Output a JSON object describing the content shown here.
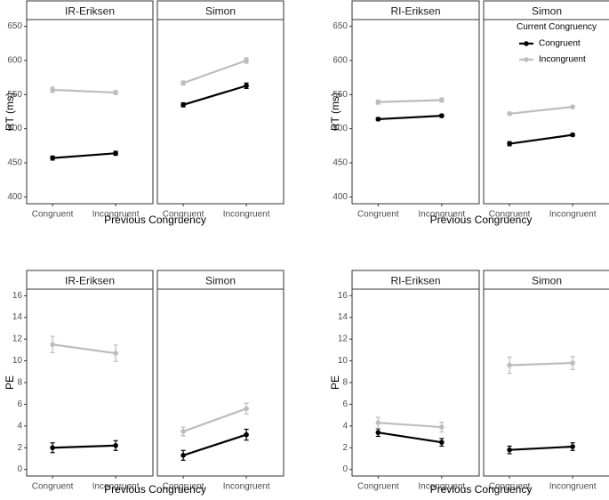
{
  "colors": {
    "Congruent": "#000000",
    "Incongruent": "#bdbdbd"
  },
  "legend": {
    "title": "Current Congruency",
    "items": [
      {
        "key": "Congruent",
        "label": "Congruent"
      },
      {
        "key": "Incongruent",
        "label": "Incongruent"
      }
    ]
  },
  "chart_data": [
    {
      "type": "line",
      "ylabel": "RT (ms)",
      "xlabel": "Previous Congruency",
      "ylim": [
        390,
        660
      ],
      "yticks": [
        400,
        450,
        500,
        550,
        600,
        650
      ],
      "categories": [
        "Congruent",
        "Incongruent"
      ],
      "panels": [
        {
          "title": "IR-Eriksen",
          "series": [
            {
              "name": "Congruent",
              "values": [
                457,
                464
              ],
              "err": [
                3,
                3
              ]
            },
            {
              "name": "Incongruent",
              "values": [
                557,
                553
              ],
              "err": [
                4,
                3
              ]
            }
          ]
        },
        {
          "title": "Simon",
          "series": [
            {
              "name": "Congruent",
              "values": [
                535,
                563
              ],
              "err": [
                3,
                4
              ]
            },
            {
              "name": "Incongruent",
              "values": [
                567,
                600
              ],
              "err": [
                3,
                4
              ]
            }
          ]
        }
      ]
    },
    {
      "type": "line",
      "ylabel": "RT (ms)",
      "xlabel": "Previous Congruency",
      "ylim": [
        390,
        660
      ],
      "yticks": [
        400,
        450,
        500,
        550,
        600,
        650
      ],
      "categories": [
        "Congruent",
        "Incongruent"
      ],
      "panels": [
        {
          "title": "RI-Eriksen",
          "series": [
            {
              "name": "Congruent",
              "values": [
                514,
                519
              ],
              "err": [
                2,
                2
              ]
            },
            {
              "name": "Incongruent",
              "values": [
                539,
                542
              ],
              "err": [
                3,
                3
              ]
            }
          ]
        },
        {
          "title": "Simon",
          "series": [
            {
              "name": "Congruent",
              "values": [
                478,
                491
              ],
              "err": [
                3,
                2
              ]
            },
            {
              "name": "Incongruent",
              "values": [
                522,
                532
              ],
              "err": [
                2,
                2
              ]
            }
          ]
        }
      ]
    },
    {
      "type": "line",
      "ylabel": "PE",
      "xlabel": "Previous Congruency",
      "ylim": [
        -0.6,
        16.6
      ],
      "yticks": [
        0,
        2,
        4,
        6,
        8,
        10,
        12,
        14,
        16
      ],
      "categories": [
        "Congruent",
        "Incongruent"
      ],
      "panels": [
        {
          "title": "IR-Eriksen",
          "series": [
            {
              "name": "Congruent",
              "values": [
                2.0,
                2.2
              ],
              "err": [
                0.45,
                0.45
              ]
            },
            {
              "name": "Incongruent",
              "values": [
                11.5,
                10.7
              ],
              "err": [
                0.75,
                0.75
              ]
            }
          ]
        },
        {
          "title": "Simon",
          "series": [
            {
              "name": "Congruent",
              "values": [
                1.3,
                3.2
              ],
              "err": [
                0.45,
                0.5
              ]
            },
            {
              "name": "Incongruent",
              "values": [
                3.5,
                5.6
              ],
              "err": [
                0.4,
                0.5
              ]
            }
          ]
        }
      ]
    },
    {
      "type": "line",
      "ylabel": "PE",
      "xlabel": "Previous Congruency",
      "ylim": [
        -0.6,
        16.6
      ],
      "yticks": [
        0,
        2,
        4,
        6,
        8,
        10,
        12,
        14,
        16
      ],
      "categories": [
        "Congruent",
        "Incongruent"
      ],
      "panels": [
        {
          "title": "RI-Eriksen",
          "series": [
            {
              "name": "Congruent",
              "values": [
                3.4,
                2.5
              ],
              "err": [
                0.35,
                0.35
              ]
            },
            {
              "name": "Incongruent",
              "values": [
                4.3,
                3.9
              ],
              "err": [
                0.5,
                0.45
              ]
            }
          ]
        },
        {
          "title": "Simon",
          "series": [
            {
              "name": "Congruent",
              "values": [
                1.8,
                2.1
              ],
              "err": [
                0.35,
                0.35
              ]
            },
            {
              "name": "Incongruent",
              "values": [
                9.6,
                9.8
              ],
              "err": [
                0.75,
                0.6
              ]
            }
          ]
        }
      ]
    }
  ]
}
